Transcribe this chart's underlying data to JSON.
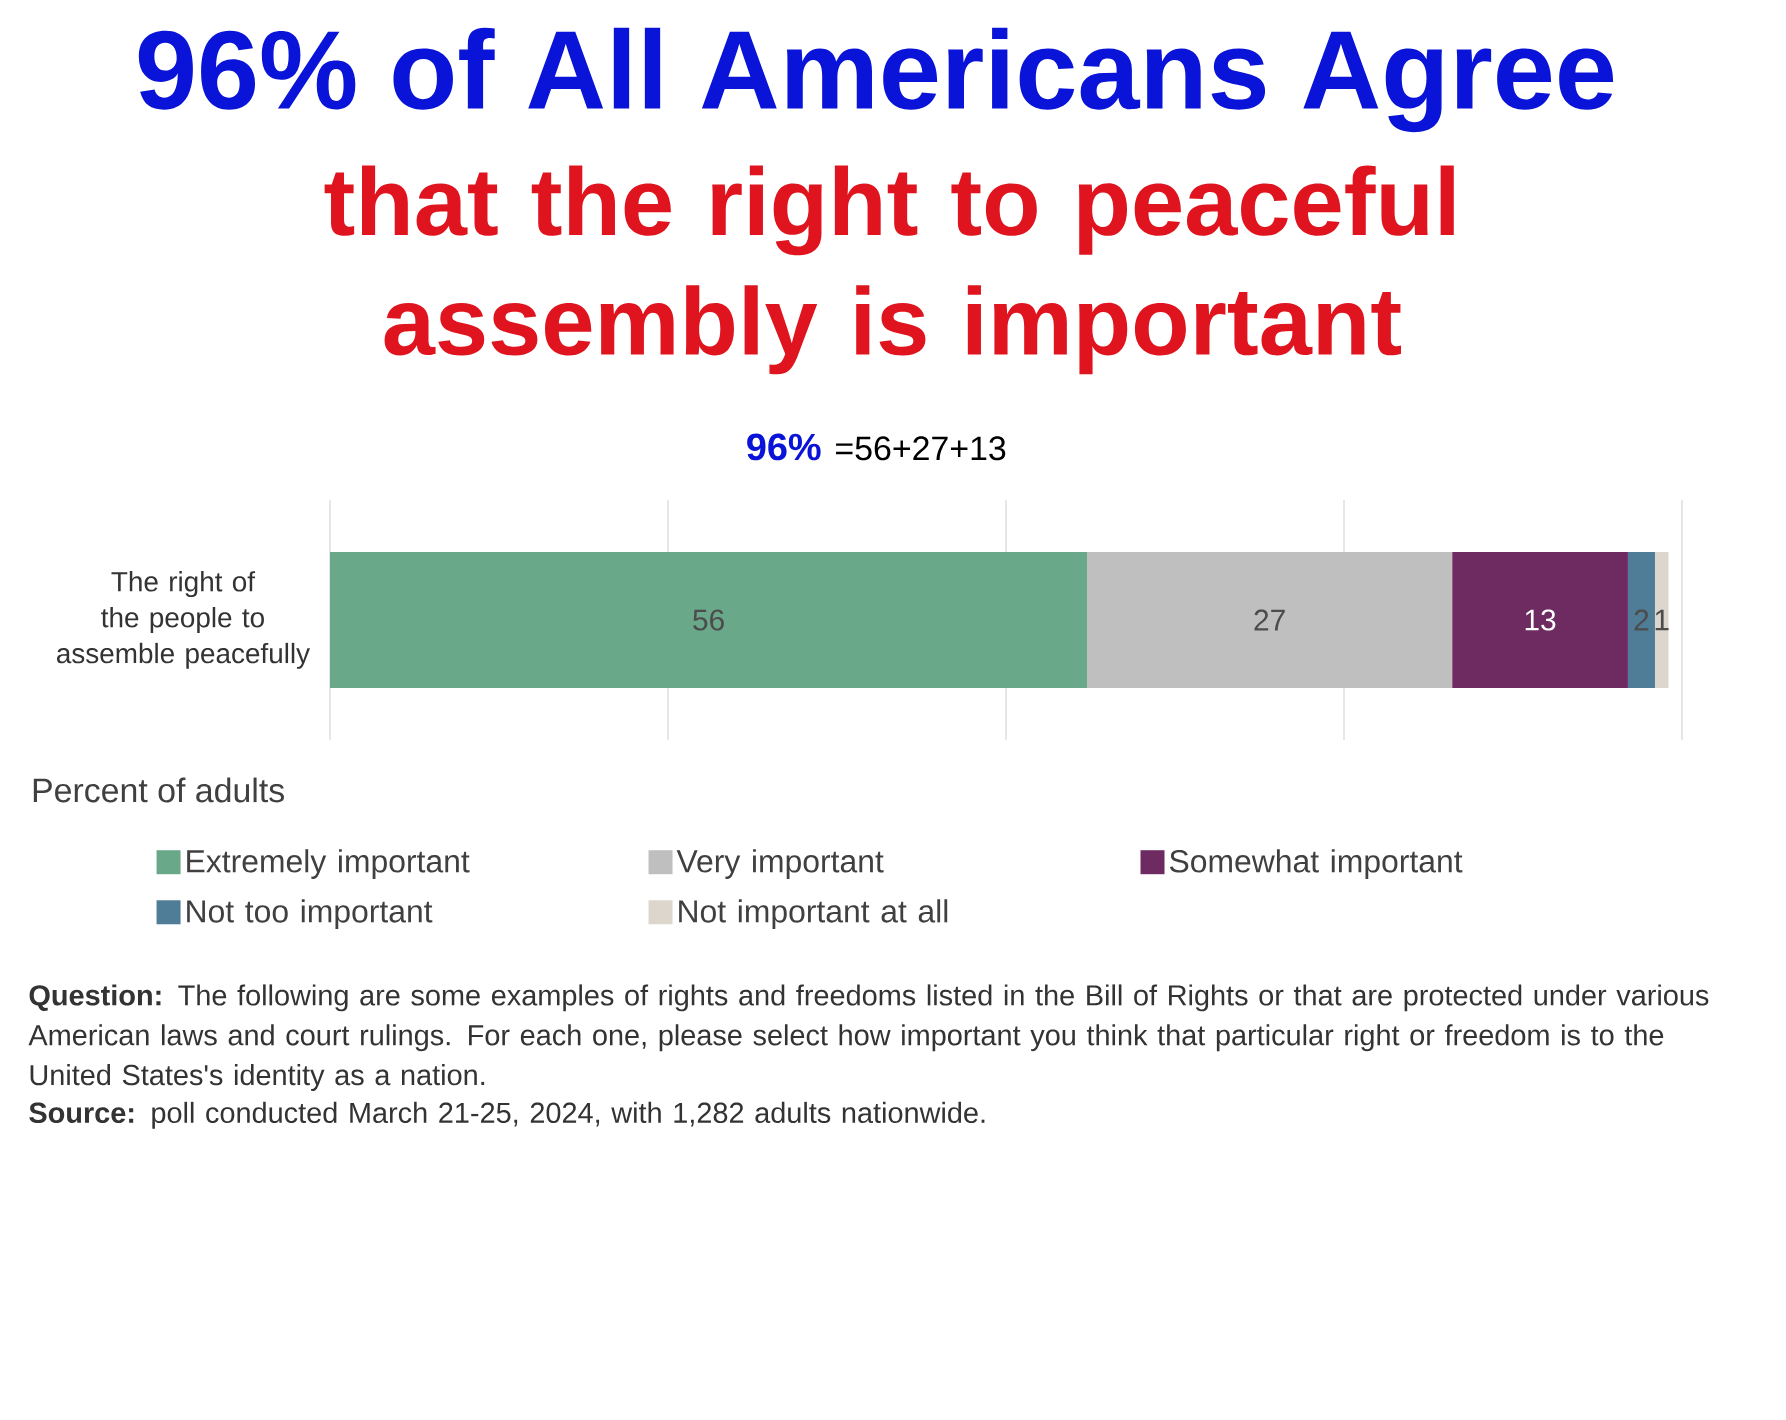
{
  "chart_data": {
    "type": "bar",
    "orientation": "horizontal",
    "stacked": true,
    "title": "96% of All Americans Agree",
    "subtitle": "that the right to peaceful assembly is important",
    "categories": [
      "The right of the people to assemble peacefully"
    ],
    "series": [
      {
        "name": "Extremely important",
        "color": "#6aa88a",
        "values": [
          56
        ]
      },
      {
        "name": "Very important",
        "color": "#bfbfbf",
        "values": [
          27
        ]
      },
      {
        "name": "Somewhat important",
        "color": "#6e2b62",
        "values": [
          13
        ]
      },
      {
        "name": "Not too important",
        "color": "#4f7d98",
        "values": [
          2
        ]
      },
      {
        "name": "Not important at all",
        "color": "#ddd6cc",
        "values": [
          1
        ]
      }
    ],
    "xlim": [
      0,
      100
    ],
    "xticks": [
      {
        "value": 0,
        "label": null
      },
      {
        "value": 25,
        "label": null
      },
      {
        "value": 50,
        "label": null
      },
      {
        "value": 75,
        "label": null
      },
      {
        "value": 100,
        "label": null
      }
    ],
    "grid": "x",
    "tick_labels": "y",
    "legend": "bottom",
    "legend_title": "Percent of adults",
    "data_labels": true,
    "annotations": [
      "96%",
      "=56+27+13",
      "**Question:** The following are some examples of rights and freedoms listed in the Bill of Rights or that are protected under various American laws and court rulings. For each one, please select how important you think that particular right or freedom is to the United States's identity as a nation.",
      "**Source:** poll conducted March 21-25, 2024, with 1,282 adults nationwide."
    ]
  }
}
